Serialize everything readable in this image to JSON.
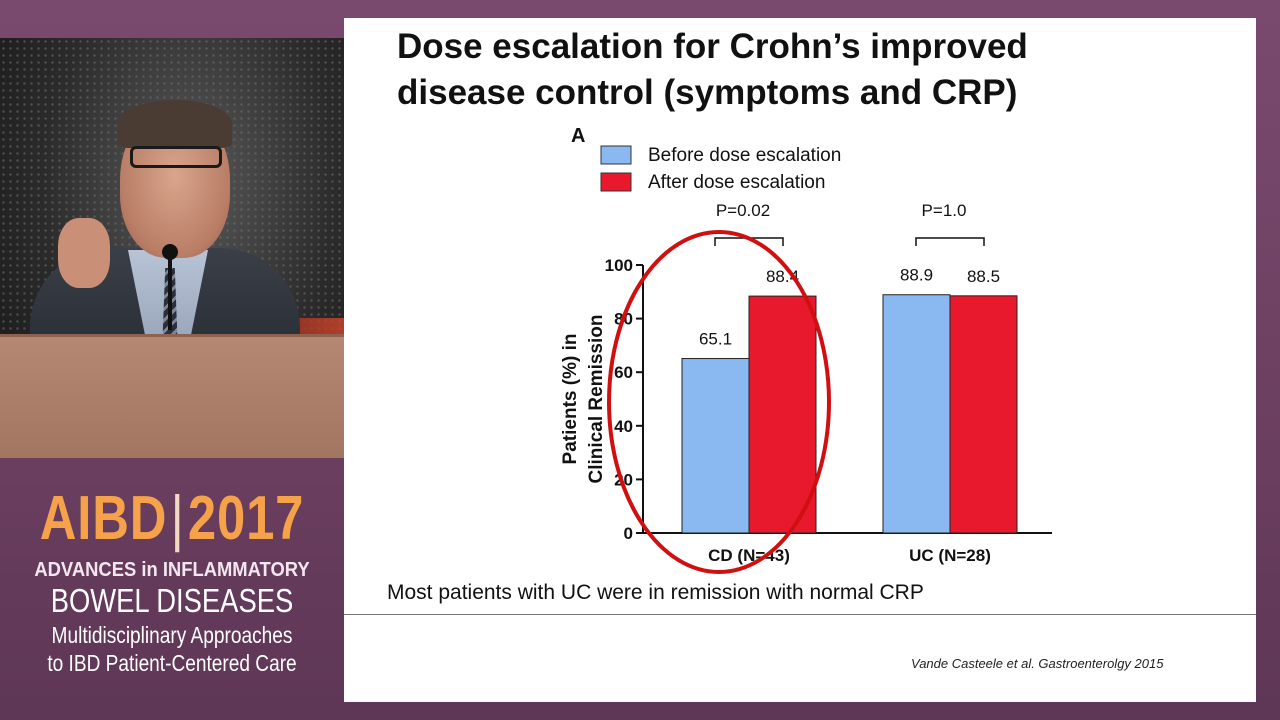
{
  "slide": {
    "title_line1": "Dose escalation for Crohn’s improved",
    "title_line2": "disease control (symptoms and CRP)",
    "footnote": "Most patients with UC were in remission with normal CRP",
    "citation": "Vande Casteele et al. Gastroenterolgy 2015"
  },
  "branding": {
    "logo_left": "AIBD",
    "logo_right": "2017",
    "line1": "ADVANCES in INFLAMMATORY",
    "line2": "BOWEL DISEASES",
    "line3": "Multidisciplinary Approaches",
    "line4": "to IBD Patient-Centered Care"
  },
  "chart_data": {
    "type": "bar",
    "panel_label": "A",
    "categories": [
      "CD (N=43)",
      "UC (N=28)"
    ],
    "series": [
      {
        "name": "Before dose escalation",
        "values": [
          65.1,
          88.9
        ],
        "color": "#8ab8f0"
      },
      {
        "name": "After dose escalation",
        "values": [
          88.4,
          88.5
        ],
        "color": "#e8192c"
      }
    ],
    "data_labels": [
      [
        "65.1",
        "88.9"
      ],
      [
        "88.4",
        "88.5"
      ]
    ],
    "p_values": [
      "P=0.02",
      "P=1.0"
    ],
    "ylabel_line1": "Patients (%) in",
    "ylabel_line2": "Clinical Remission",
    "ylim": [
      0,
      100
    ],
    "yticks": [
      "0",
      "20",
      "40",
      "60",
      "80",
      "100"
    ],
    "legend_position": "top-left",
    "highlight_color": "#d01010",
    "grid": false
  }
}
